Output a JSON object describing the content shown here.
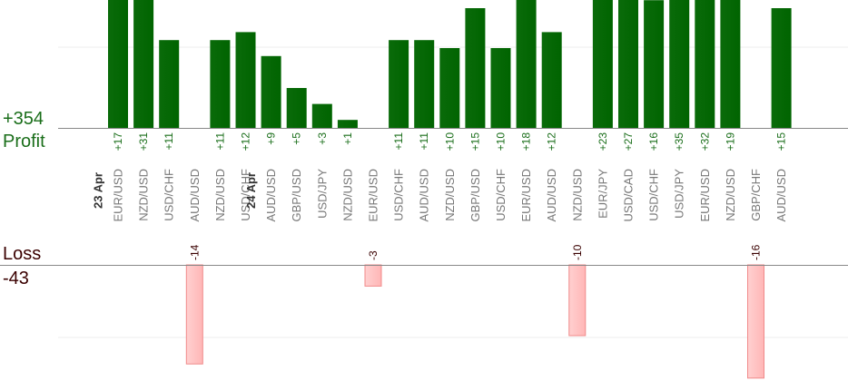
{
  "summary": {
    "profit_total": "+354",
    "profit_label": "Profit",
    "loss_label": "Loss",
    "loss_total": "-43"
  },
  "colors": {
    "profit_bar": "#006400",
    "profit_text": "#1a6e1a",
    "loss_bar": "#ffb6b6",
    "loss_bar_border": "#f08a8a",
    "category_text": "#777777",
    "date_text": "#333333",
    "axis_line": "#888888",
    "grid_line": "#eeeeee"
  },
  "chart_data": {
    "type": "bar",
    "title": "",
    "xlabel": "",
    "ylabel": "",
    "grid": true,
    "groups": [
      {
        "date": "23 Apr",
        "items": [
          {
            "pair": "EUR/USD",
            "value": 17
          },
          {
            "pair": "NZD/USD",
            "value": 31
          },
          {
            "pair": "USD/CHF",
            "value": 11
          },
          {
            "pair": "AUD/USD",
            "value": -14
          },
          {
            "pair": "NZD/USD",
            "value": 11
          },
          {
            "pair": "USD/CHF",
            "value": 12
          }
        ]
      },
      {
        "date": "24 Apr",
        "items": [
          {
            "pair": "AUD/USD",
            "value": 9
          },
          {
            "pair": "GBP/USD",
            "value": 5
          },
          {
            "pair": "USD/JPY",
            "value": 3
          },
          {
            "pair": "NZD/USD",
            "value": 1
          },
          {
            "pair": "EUR/USD",
            "value": -3
          },
          {
            "pair": "USD/CHF",
            "value": 11
          },
          {
            "pair": "AUD/USD",
            "value": 11
          },
          {
            "pair": "NZD/USD",
            "value": 10
          },
          {
            "pair": "GBP/USD",
            "value": 15
          },
          {
            "pair": "USD/CHF",
            "value": 10
          },
          {
            "pair": "EUR/USD",
            "value": 18
          },
          {
            "pair": "AUD/USD",
            "value": 12
          },
          {
            "pair": "NZD/USD",
            "value": -10
          },
          {
            "pair": "EUR/JPY",
            "value": 23
          },
          {
            "pair": "USD/CAD",
            "value": 27
          },
          {
            "pair": "USD/CHF",
            "value": 16
          },
          {
            "pair": "USD/JPY",
            "value": 35
          },
          {
            "pair": "EUR/USD",
            "value": 32
          },
          {
            "pair": "NZD/USD",
            "value": 19
          },
          {
            "pair": "GBP/CHF",
            "value": -16
          },
          {
            "pair": "AUD/USD",
            "value": 15
          }
        ]
      }
    ]
  }
}
